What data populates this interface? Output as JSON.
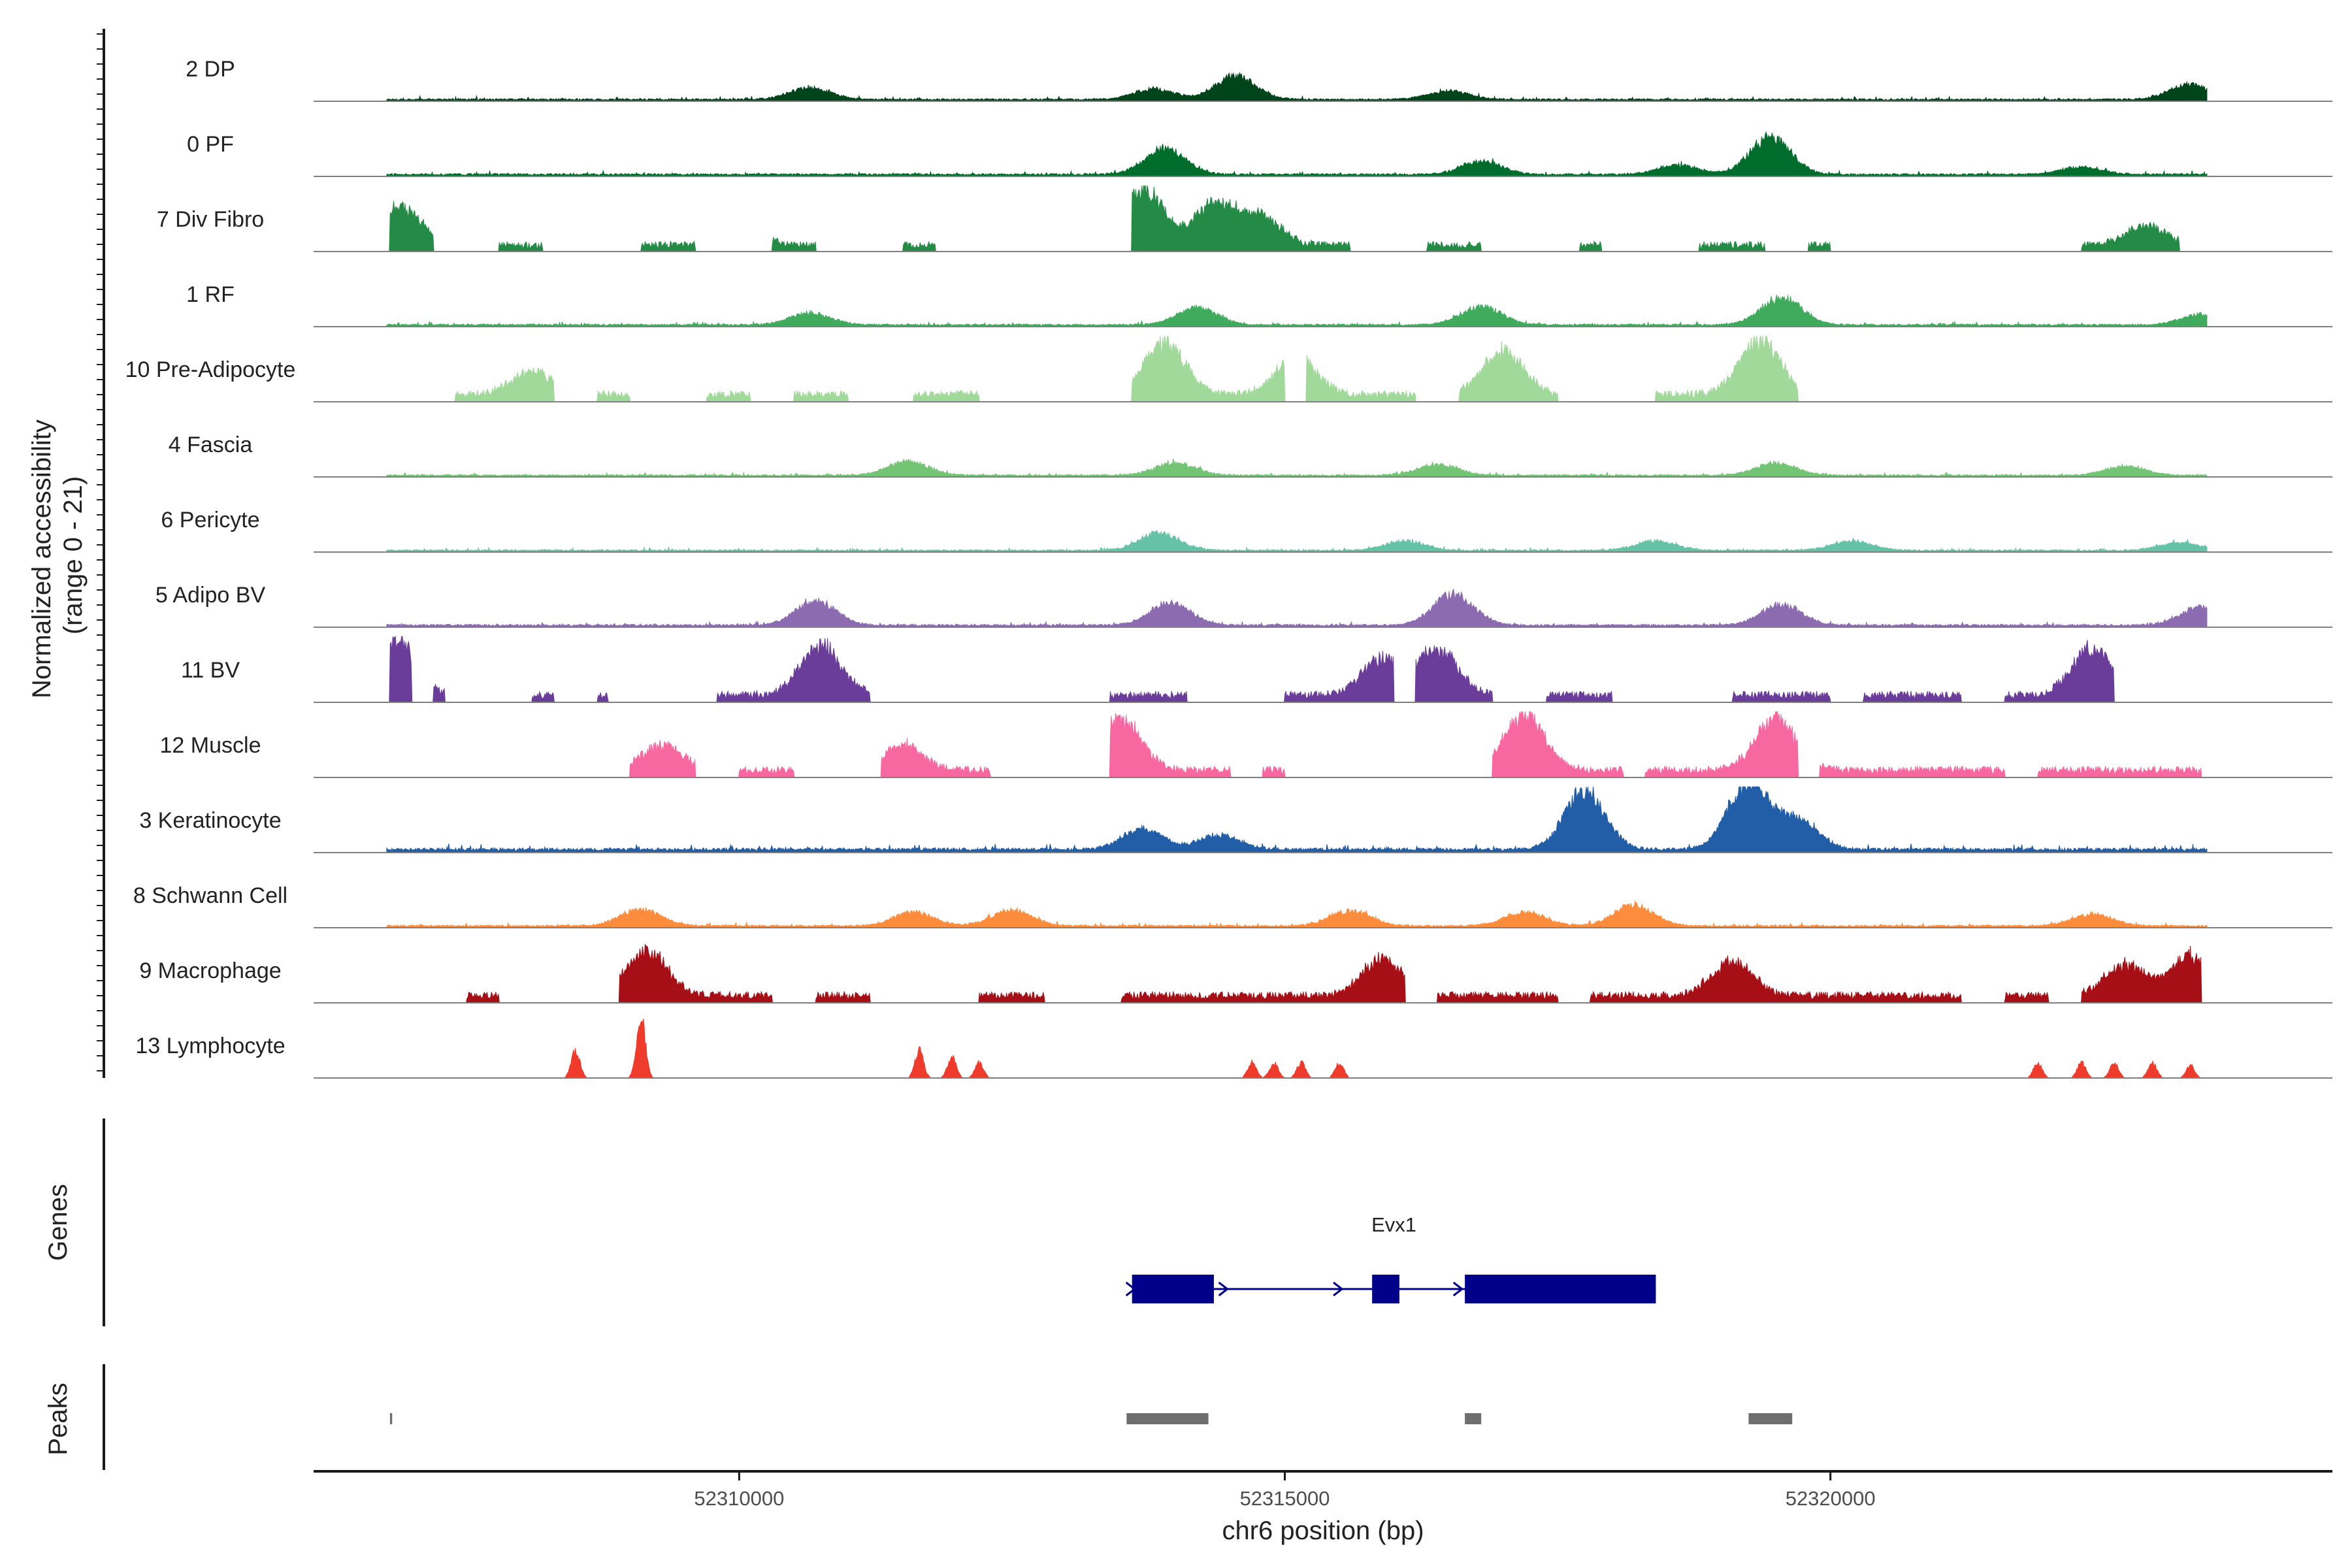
{
  "chart_data": {
    "type": "area",
    "title": "",
    "ylabel_line1": "Normalized accessibility",
    "ylabel_line2": "(range 0 - 21)",
    "xlabel": "chr6 position (bp)",
    "xlim": [
      52306100,
      52324600
    ],
    "ylim": [
      0,
      21
    ],
    "x_ticks": [
      52310000,
      52315000,
      52320000
    ],
    "x_tick_labels": [
      "52310000",
      "52315000",
      "52320000"
    ],
    "genes_label": "Genes",
    "peaks_label": "Peaks",
    "series": [
      {
        "name": "2 DP",
        "color": "#00441b",
        "mode": "cont",
        "scale": 0.55,
        "peaks": [
          [
            52310650,
            0.35
          ],
          [
            52313800,
            0.3
          ],
          [
            52314550,
            0.7
          ],
          [
            52323300,
            0.45
          ],
          [
            52316500,
            0.25
          ]
        ]
      },
      {
        "name": "0 PF",
        "color": "#006d2c",
        "mode": "cont",
        "scale": 0.6,
        "peaks": [
          [
            52313900,
            0.7
          ],
          [
            52316800,
            0.35
          ],
          [
            52319450,
            1.0
          ],
          [
            52318600,
            0.25
          ],
          [
            52322300,
            0.2
          ]
        ]
      },
      {
        "name": "7 Div Fibro",
        "color": "#238b45",
        "mode": "block",
        "scale": 0.9,
        "peaks": [
          [
            52306900,
            0.7
          ],
          [
            52313700,
            1.0
          ],
          [
            52314350,
            0.75
          ],
          [
            52314780,
            0.5
          ],
          [
            52310000,
            0.4
          ],
          [
            52322900,
            0.35
          ]
        ],
        "regions": [
          [
            52306800,
            52307200
          ],
          [
            52307800,
            52308200
          ],
          [
            52309100,
            52309600
          ],
          [
            52310300,
            52310700
          ],
          [
            52311500,
            52311800
          ],
          [
            52313600,
            52315600
          ],
          [
            52316300,
            52316800
          ],
          [
            52317700,
            52317900
          ],
          [
            52318800,
            52319400
          ],
          [
            52319800,
            52320000
          ],
          [
            52322300,
            52323200
          ]
        ]
      },
      {
        "name": "1 RF",
        "color": "#41ab5d",
        "mode": "cont",
        "scale": 0.55,
        "peaks": [
          [
            52310650,
            0.35
          ],
          [
            52314200,
            0.5
          ],
          [
            52316800,
            0.55
          ],
          [
            52319550,
            0.8
          ],
          [
            52323400,
            0.3
          ]
        ]
      },
      {
        "name": "10 Pre-Adipocyte",
        "color": "#a1d99b",
        "mode": "block",
        "scale": 1.0,
        "peaks": [
          [
            52313900,
            0.85
          ],
          [
            52315100,
            0.6
          ],
          [
            52317000,
            0.7
          ],
          [
            52319350,
            0.9
          ],
          [
            52308100,
            0.4
          ]
        ],
        "regions": [
          [
            52307400,
            52308300
          ],
          [
            52308700,
            52309000
          ],
          [
            52309700,
            52310100
          ],
          [
            52310500,
            52311000
          ],
          [
            52311600,
            52312200
          ],
          [
            52313600,
            52315000
          ],
          [
            52315200,
            52316200
          ],
          [
            52316600,
            52317500
          ],
          [
            52318400,
            52319700
          ]
        ]
      },
      {
        "name": "4 Fascia",
        "color": "#74c476",
        "mode": "cont",
        "scale": 0.5,
        "peaks": [
          [
            52311550,
            0.45
          ],
          [
            52314000,
            0.4
          ],
          [
            52316400,
            0.35
          ],
          [
            52319500,
            0.4
          ],
          [
            52322700,
            0.3
          ]
        ]
      },
      {
        "name": "6 Pericyte",
        "color": "#66c2a4",
        "mode": "cont",
        "scale": 0.5,
        "peaks": [
          [
            52313850,
            0.55
          ],
          [
            52316100,
            0.3
          ],
          [
            52318400,
            0.3
          ],
          [
            52320200,
            0.3
          ],
          [
            52323200,
            0.25
          ]
        ]
      },
      {
        "name": "5 Adipo BV",
        "color": "#8c6bb1",
        "mode": "cont",
        "scale": 0.6,
        "peaks": [
          [
            52310700,
            0.65
          ],
          [
            52313950,
            0.6
          ],
          [
            52316550,
            0.85
          ],
          [
            52319550,
            0.55
          ],
          [
            52323400,
            0.5
          ]
        ]
      },
      {
        "name": "11 BV",
        "color": "#6a3d9a",
        "mode": "block",
        "scale": 1.0,
        "peaks": [
          [
            52306850,
            0.9
          ],
          [
            52310750,
            0.8
          ],
          [
            52315900,
            0.6
          ],
          [
            52316400,
            0.7
          ],
          [
            52322400,
            0.75
          ]
        ],
        "regions": [
          [
            52306800,
            52307000
          ],
          [
            52307200,
            52307300
          ],
          [
            52308100,
            52308300
          ],
          [
            52308700,
            52308800
          ],
          [
            52309800,
            52311200
          ],
          [
            52313400,
            52314100
          ],
          [
            52315000,
            52316000
          ],
          [
            52316200,
            52316900
          ],
          [
            52317400,
            52318000
          ],
          [
            52319100,
            52320000
          ],
          [
            52320300,
            52321200
          ],
          [
            52321600,
            52322600
          ]
        ]
      },
      {
        "name": "12 Muscle",
        "color": "#f768a1",
        "mode": "block",
        "scale": 1.0,
        "peaks": [
          [
            52313500,
            0.85
          ],
          [
            52317200,
            0.9
          ],
          [
            52319500,
            0.85
          ],
          [
            52309300,
            0.4
          ],
          [
            52311500,
            0.4
          ]
        ],
        "regions": [
          [
            52309000,
            52309600
          ],
          [
            52310000,
            52310500
          ],
          [
            52311300,
            52312300
          ],
          [
            52313400,
            52314500
          ],
          [
            52314800,
            52315000
          ],
          [
            52316900,
            52318100
          ],
          [
            52318300,
            52319700
          ],
          [
            52319900,
            52321600
          ],
          [
            52321900,
            52323400
          ]
        ]
      },
      {
        "name": "3 Keratinocyte",
        "color": "#225ea8",
        "mode": "cont",
        "scale": 0.95,
        "peaks": [
          [
            52317750,
            1.0
          ],
          [
            52319250,
            1.15
          ],
          [
            52319700,
            0.5
          ],
          [
            52313700,
            0.35
          ],
          [
            52314400,
            0.25
          ]
        ]
      },
      {
        "name": "8 Schwann Cell",
        "color": "#fd8d3c",
        "mode": "cont",
        "scale": 0.55,
        "peaks": [
          [
            52309100,
            0.5
          ],
          [
            52311600,
            0.4
          ],
          [
            52312500,
            0.45
          ],
          [
            52315600,
            0.45
          ],
          [
            52317200,
            0.4
          ],
          [
            52318200,
            0.6
          ],
          [
            52322400,
            0.35
          ]
        ]
      },
      {
        "name": "9 Macrophage",
        "color": "#a50f15",
        "mode": "block",
        "scale": 1.0,
        "peaks": [
          [
            52309150,
            0.75
          ],
          [
            52315900,
            0.6
          ],
          [
            52319100,
            0.55
          ],
          [
            52323300,
            0.65
          ],
          [
            52322700,
            0.5
          ]
        ],
        "regions": [
          [
            52307500,
            52307800
          ],
          [
            52308900,
            52310300
          ],
          [
            52310700,
            52311200
          ],
          [
            52312200,
            52312800
          ],
          [
            52313500,
            52316100
          ],
          [
            52316400,
            52317500
          ],
          [
            52317800,
            52321200
          ],
          [
            52321600,
            52322000
          ],
          [
            52322300,
            52323400
          ]
        ]
      },
      {
        "name": "13 Lymphocyte",
        "color": "#ef3b2c",
        "mode": "spike",
        "scale": 1.0,
        "peaks": [
          [
            52308500,
            0.45
          ],
          [
            52309100,
            1.0
          ],
          [
            52311650,
            0.45
          ],
          [
            52311950,
            0.35
          ],
          [
            52312200,
            0.25
          ],
          [
            52314700,
            0.25
          ],
          [
            52314900,
            0.25
          ],
          [
            52315150,
            0.25
          ],
          [
            52315500,
            0.25
          ],
          [
            52321900,
            0.25
          ],
          [
            52322300,
            0.25
          ],
          [
            52322600,
            0.25
          ],
          [
            52322950,
            0.25
          ],
          [
            52323300,
            0.2
          ]
        ]
      }
    ],
    "gene": {
      "name": "Evx1",
      "strand": "+",
      "start": 52313600,
      "end": 52318400,
      "exons": [
        [
          52313600,
          52314350
        ],
        [
          52315800,
          52316050
        ],
        [
          52316650,
          52318400
        ]
      ],
      "color": "#00008b"
    },
    "peaks_track": [
      [
        52306800,
        52306820
      ],
      [
        52313550,
        52314300
      ],
      [
        52316650,
        52316800
      ],
      [
        52319250,
        52319650
      ]
    ],
    "peak_color": "#6e6e6e"
  }
}
